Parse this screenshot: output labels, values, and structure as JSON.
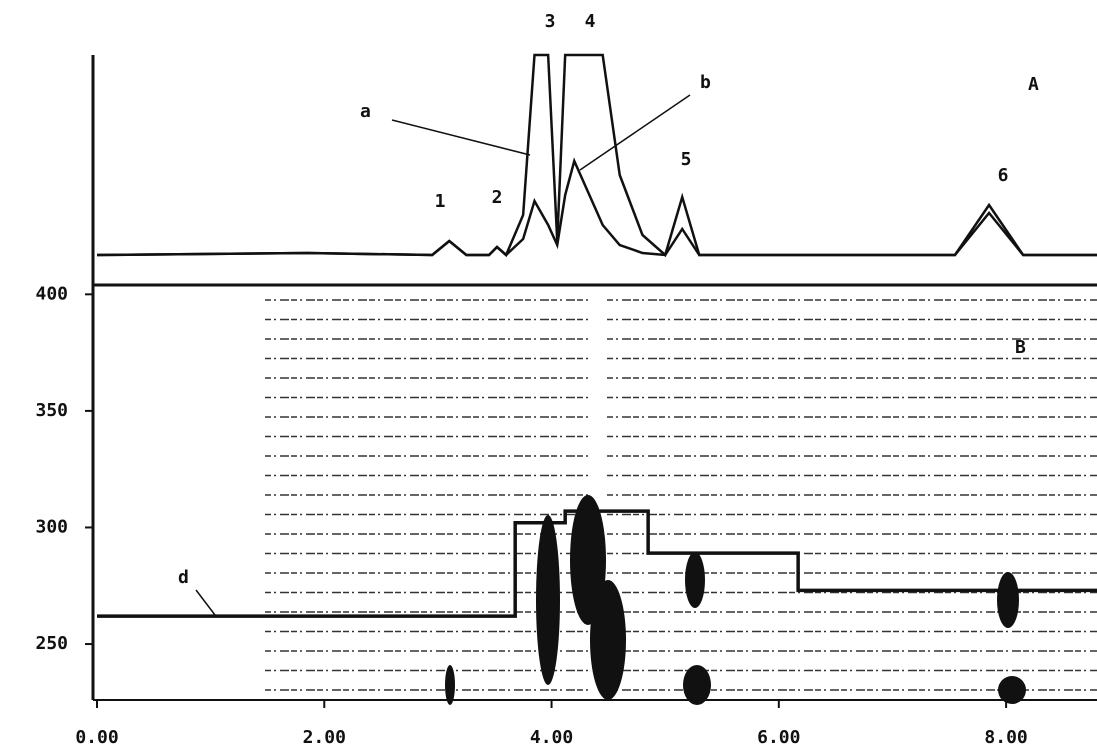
{
  "chart_data": [
    {
      "type": "line",
      "title": "A",
      "ylim": [
        0,
        100
      ],
      "x": [
        0,
        1.85,
        2.95,
        3.1,
        3.25,
        3.45,
        3.52,
        3.6,
        3.75,
        3.85,
        3.97,
        4.05,
        4.12,
        4.2,
        4.45,
        4.6,
        4.8,
        5.0,
        5.15,
        5.3,
        7.55,
        7.85,
        8.15,
        8.8
      ],
      "series": [
        {
          "name": "a",
          "color": "#111",
          "values": [
            0,
            1,
            0,
            7,
            0,
            0,
            4,
            0,
            20,
            100,
            100,
            7,
            100,
            100,
            100,
            40,
            10,
            0,
            29,
            0,
            0,
            25,
            0,
            0
          ]
        },
        {
          "name": "b",
          "color": "#111",
          "values": [
            0,
            1,
            0,
            7,
            0,
            0,
            4,
            0,
            8,
            27,
            15,
            5,
            30,
            47,
            15,
            5,
            1,
            0,
            13,
            0,
            0,
            21,
            0,
            0
          ]
        }
      ],
      "annotations": [
        "1",
        "2",
        "3",
        "4",
        "5",
        "6"
      ]
    },
    {
      "type": "step",
      "title": "B",
      "x": [
        0,
        3.68,
        4.12,
        4.85,
        6.17,
        8.8
      ],
      "series": [
        {
          "name": "d",
          "color": "#111",
          "values": [
            262,
            302,
            307,
            289,
            273,
            273
          ]
        }
      ],
      "xlim": [
        0,
        8.8
      ],
      "xticks": [
        {
          "value": 0,
          "label": "0.00"
        },
        {
          "value": 2,
          "label": "2.00"
        },
        {
          "value": 4,
          "label": "4.00"
        },
        {
          "value": 6,
          "label": "6.00"
        },
        {
          "value": 8,
          "label": "8.00"
        }
      ],
      "ylim": [
        226,
        404
      ],
      "yticks": [
        250,
        300,
        350,
        400
      ]
    }
  ]
}
